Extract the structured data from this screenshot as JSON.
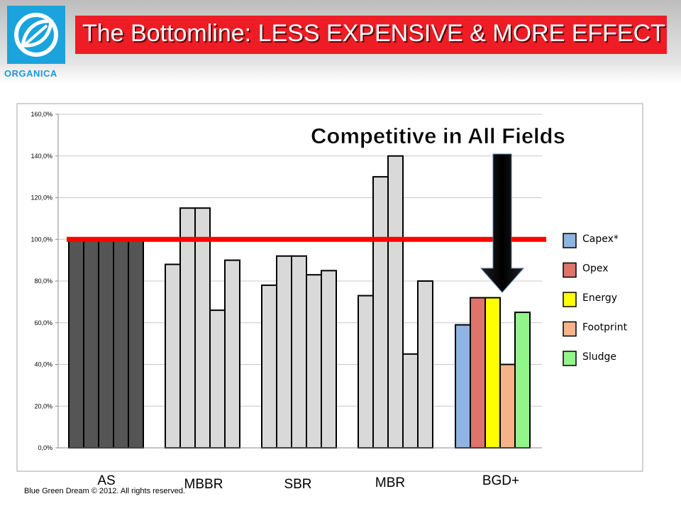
{
  "header": {
    "title": "The Bottomline: LESS EXPENSIVE & MORE EFFECTIVE",
    "logo_text": "ORGANICA",
    "logo_icon": "leaf-icon",
    "title_bg_color": "#ee1c24",
    "logo_bg_color": "#1aa3dc"
  },
  "footer": {
    "copyright": "Blue Green Dream © 2012. All rights reserved."
  },
  "chart_data": {
    "type": "bar",
    "title": "",
    "xlabel": "",
    "ylabel": "",
    "ylim": [
      0,
      160
    ],
    "yticks": [
      0,
      20,
      40,
      60,
      80,
      100,
      120,
      140,
      160
    ],
    "ytick_labels": [
      "0,0%",
      "20,0%",
      "40,0%",
      "60,0%",
      "80,0%",
      "100,0%",
      "120,0%",
      "140,0%",
      "160,0%"
    ],
    "grid": true,
    "legend_position": "right",
    "categories": [
      "AS",
      "MBBR",
      "SBR",
      "MBR",
      "BGD+"
    ],
    "series": [
      {
        "name": "Capex*",
        "color": "#8db4e2",
        "values": [
          100,
          88,
          78,
          73,
          59
        ]
      },
      {
        "name": "Opex",
        "color": "#e0746a",
        "values": [
          100,
          115,
          92,
          130,
          72
        ]
      },
      {
        "name": "Energy",
        "color": "#ffff00",
        "values": [
          100,
          115,
          92,
          140,
          72
        ]
      },
      {
        "name": "Footprint",
        "color": "#f6b38a",
        "values": [
          100,
          66,
          83,
          45,
          40
        ]
      },
      {
        "name": "Sludge",
        "color": "#92f58a",
        "values": [
          100,
          90,
          85,
          80,
          65
        ]
      }
    ],
    "group_colors": [
      "#555555",
      "#d9d9d9",
      "#d9d9d9",
      "#d9d9d9",
      null
    ],
    "reference_line": {
      "value": 100,
      "color": "#ff0000"
    },
    "annotation": {
      "text": "Competitive in All Fields",
      "arrow_color": "#000000"
    }
  }
}
